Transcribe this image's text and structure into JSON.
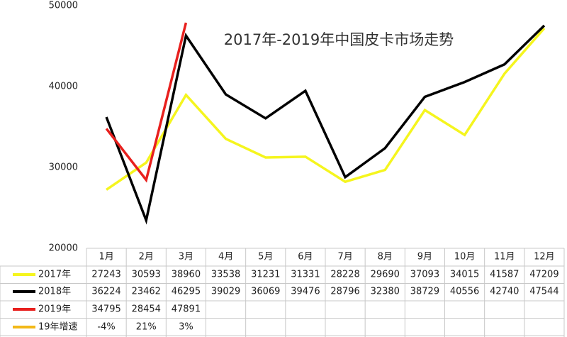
{
  "chart_data": {
    "type": "line",
    "title": "2017年-2019年中国皮卡市场走势",
    "categories": [
      "1月",
      "2月",
      "3月",
      "4月",
      "5月",
      "6月",
      "7月",
      "8月",
      "9月",
      "10月",
      "11月",
      "12月"
    ],
    "ylim": [
      20000,
      50000
    ],
    "yticks": [
      20000,
      30000,
      40000,
      50000
    ],
    "grid": false,
    "series": [
      {
        "name": "2017年",
        "color": "#f5f51e",
        "values": [
          27243,
          30593,
          38960,
          33538,
          31231,
          31331,
          28228,
          29690,
          37093,
          34015,
          41587,
          47209
        ]
      },
      {
        "name": "2018年",
        "color": "#000000",
        "values": [
          36224,
          23462,
          46295,
          39029,
          36069,
          39476,
          28796,
          32380,
          38729,
          40556,
          42740,
          47544
        ]
      },
      {
        "name": "2019年",
        "color": "#e8201e",
        "values": [
          34795,
          28454,
          47891,
          null,
          null,
          null,
          null,
          null,
          null,
          null,
          null,
          null
        ]
      }
    ],
    "growth_series": {
      "name": "19年增速",
      "color": "#f2b817",
      "values": [
        -4,
        21,
        3
      ],
      "value_labels": [
        "-4%",
        "21%",
        "3%"
      ]
    }
  }
}
